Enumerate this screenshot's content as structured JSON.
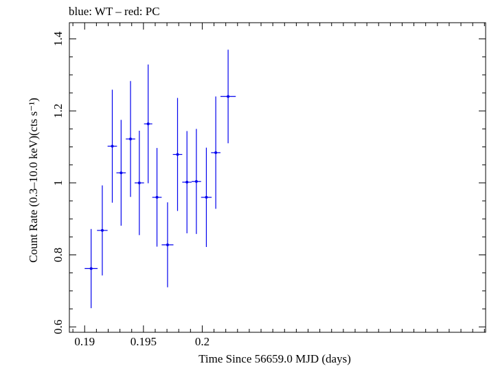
{
  "chart_data": {
    "type": "scatter",
    "title": "blue: WT – red: PC",
    "xlabel": "Time Since 56659.0 MJD (days)",
    "ylabel": "Count Rate (0.3–10.0 keV)(cts s⁻¹)",
    "xlim": [
      0.1887,
      0.2241
    ],
    "ylim": [
      0.585,
      1.445
    ],
    "xticks": [
      0.19,
      0.195,
      0.2
    ],
    "xtick_labels": [
      "0.19",
      "0.195",
      "0.2"
    ],
    "yticks": [
      0.6,
      0.8,
      1,
      1.2,
      1.4
    ],
    "ytick_labels": [
      "0.6",
      "0.8",
      "1",
      "1.2",
      "1.4"
    ],
    "grid": false,
    "series": [
      {
        "color": "#0000ee",
        "points": [
          {
            "x": 0.19055,
            "y": 0.762,
            "xerr": 0.00055,
            "yerr_low": 0.11,
            "yerr_high": 0.11
          },
          {
            "x": 0.1915,
            "y": 0.868,
            "xerr": 0.00045,
            "yerr_low": 0.125,
            "yerr_high": 0.125
          },
          {
            "x": 0.19235,
            "y": 1.102,
            "xerr": 0.0004,
            "yerr_low": 0.157,
            "yerr_high": 0.157
          },
          {
            "x": 0.1931,
            "y": 1.028,
            "xerr": 0.0004,
            "yerr_low": 0.147,
            "yerr_high": 0.147
          },
          {
            "x": 0.1939,
            "y": 1.122,
            "xerr": 0.0004,
            "yerr_low": 0.161,
            "yerr_high": 0.161
          },
          {
            "x": 0.19465,
            "y": 1.0,
            "xerr": 0.0004,
            "yerr_low": 0.145,
            "yerr_high": 0.145
          },
          {
            "x": 0.1954,
            "y": 1.164,
            "xerr": 0.00035,
            "yerr_low": 0.165,
            "yerr_high": 0.165
          },
          {
            "x": 0.19615,
            "y": 0.96,
            "xerr": 0.0004,
            "yerr_low": 0.137,
            "yerr_high": 0.137
          },
          {
            "x": 0.19705,
            "y": 0.828,
            "xerr": 0.0005,
            "yerr_low": 0.118,
            "yerr_high": 0.118
          },
          {
            "x": 0.1979,
            "y": 1.079,
            "xerr": 0.0004,
            "yerr_low": 0.157,
            "yerr_high": 0.157
          },
          {
            "x": 0.1987,
            "y": 1.002,
            "xerr": 0.0004,
            "yerr_low": 0.142,
            "yerr_high": 0.142
          },
          {
            "x": 0.1995,
            "y": 1.004,
            "xerr": 0.0004,
            "yerr_low": 0.146,
            "yerr_high": 0.146
          },
          {
            "x": 0.20035,
            "y": 0.96,
            "xerr": 0.00045,
            "yerr_low": 0.138,
            "yerr_high": 0.138
          },
          {
            "x": 0.20115,
            "y": 1.084,
            "xerr": 0.0004,
            "yerr_low": 0.156,
            "yerr_high": 0.156
          },
          {
            "x": 0.2022,
            "y": 1.24,
            "xerr": 0.00065,
            "yerr_low": 0.13,
            "yerr_high": 0.13
          }
        ]
      }
    ]
  }
}
